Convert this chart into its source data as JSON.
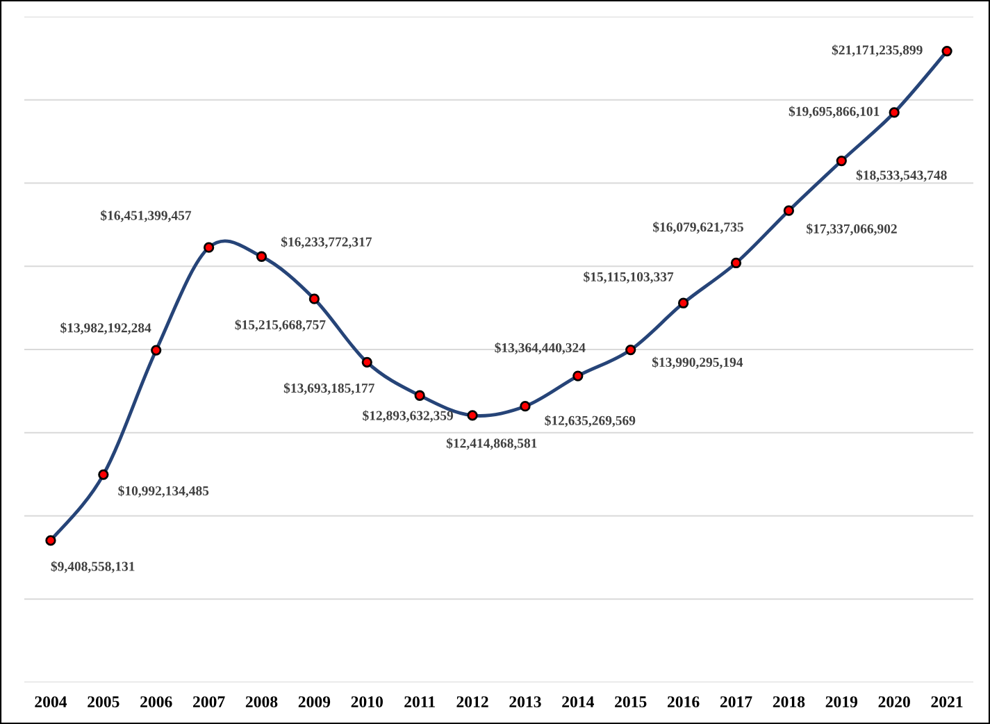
{
  "chart_data": {
    "type": "line",
    "categories": [
      "2004",
      "2005",
      "2006",
      "2007",
      "2008",
      "2009",
      "2010",
      "2011",
      "2012",
      "2013",
      "2014",
      "2015",
      "2016",
      "2017",
      "2018",
      "2019",
      "2020",
      "2021"
    ],
    "series": [
      {
        "color": "#264478",
        "values": [
          9408558131,
          10992134485,
          13982192284,
          16451399457,
          16233772317,
          15215668757,
          13693185177,
          12893632359,
          12414868581,
          12635269569,
          13364440324,
          13990295194,
          15115103337,
          16079621735,
          17337066902,
          18533543748,
          19695866101,
          21171235899
        ],
        "value_labels": [
          "$9,408,558,131",
          "$10,992,134,485",
          "$13,982,192,284",
          "$16,451,399,457",
          "$16,233,772,317",
          "$15,215,668,757",
          "$13,693,185,177",
          "$12,893,632,359",
          "$12,414,868,581",
          "$12,635,269,569",
          "$13,364,440,324",
          "$13,990,295,194",
          "$15,115,103,337",
          "$16,079,621,735",
          "$17,337,066,902",
          "$18,533,543,748",
          "$19,695,866,101",
          "$21,171,235,899"
        ]
      }
    ],
    "ylim": [
      6000000000,
      22000000000
    ],
    "yticks": [
      {
        "value": 6000000000,
        "label": null
      },
      {
        "value": 8000000000,
        "label": null
      },
      {
        "value": 10000000000,
        "label": null
      },
      {
        "value": 12000000000,
        "label": null
      },
      {
        "value": 14000000000,
        "label": null
      },
      {
        "value": 16000000000,
        "label": null
      },
      {
        "value": 18000000000,
        "label": null
      },
      {
        "value": 20000000000,
        "label": null
      },
      {
        "value": 22000000000,
        "label": null
      }
    ],
    "tick_labels": "x",
    "grid": "y",
    "marker": "circle",
    "line_style": "solid",
    "legend": false
  }
}
